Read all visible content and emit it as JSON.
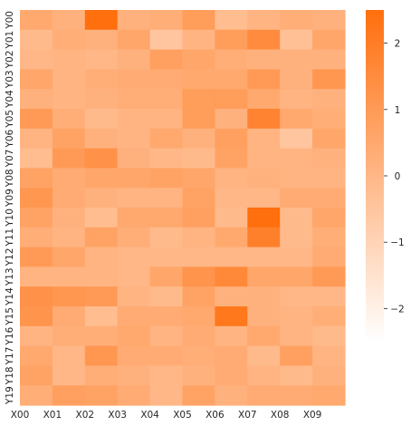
{
  "chart_data": {
    "type": "heatmap",
    "title": "",
    "xlabel": "",
    "ylabel": "",
    "x_labels": [
      "X00",
      "X01",
      "X02",
      "X03",
      "X04",
      "X05",
      "X06",
      "X07",
      "X08",
      "X09"
    ],
    "y_labels": [
      "Y00",
      "Y01",
      "Y02",
      "Y03",
      "Y04",
      "Y05",
      "Y06",
      "Y07",
      "Y08",
      "Y09",
      "Y10",
      "Y11",
      "Y12",
      "Y13",
      "Y14",
      "Y15",
      "Y16",
      "Y17",
      "Y18",
      "Y19"
    ],
    "values": [
      [
        0.5,
        0.2,
        2.5,
        0.2,
        0.3,
        0.9,
        -0.2,
        0.1,
        0.3,
        0.2
      ],
      [
        -0.1,
        0.3,
        0.2,
        0.6,
        -0.5,
        0.1,
        0.9,
        1.5,
        -0.3,
        0.6
      ],
      [
        0.0,
        0.1,
        0.0,
        0.2,
        0.8,
        0.6,
        0.3,
        0.2,
        0.2,
        0.2
      ],
      [
        0.6,
        0.1,
        0.3,
        0.4,
        0.4,
        0.5,
        0.5,
        1.0,
        0.2,
        1.1
      ],
      [
        0.2,
        0.1,
        0.2,
        0.3,
        0.3,
        0.9,
        0.9,
        0.5,
        0.1,
        0.2
      ],
      [
        1.0,
        0.3,
        -0.1,
        0.1,
        0.1,
        0.9,
        0.2,
        1.8,
        0.5,
        0.3
      ],
      [
        0.1,
        0.7,
        0.2,
        0.1,
        0.5,
        0.2,
        0.8,
        0.1,
        -0.5,
        0.6
      ],
      [
        -0.2,
        1.0,
        1.3,
        0.2,
        0.0,
        -0.1,
        0.7,
        0.1,
        0.1,
        0.2
      ],
      [
        0.7,
        0.4,
        0.6,
        0.6,
        0.7,
        0.6,
        0.1,
        0.2,
        0.1,
        0.1
      ],
      [
        1.1,
        0.4,
        0.2,
        0.1,
        0.1,
        0.7,
        0.0,
        0.0,
        0.4,
        0.4
      ],
      [
        0.7,
        0.2,
        -0.2,
        0.5,
        0.5,
        0.8,
        -0.1,
        2.5,
        -0.1,
        0.6
      ],
      [
        0.3,
        0.1,
        0.7,
        0.3,
        -0.1,
        0.1,
        0.5,
        1.9,
        -0.1,
        0.3
      ],
      [
        1.0,
        0.6,
        0.1,
        0.0,
        0.0,
        0.0,
        0.0,
        0.0,
        0.0,
        0.4
      ],
      [
        0.1,
        0.1,
        0.1,
        0.0,
        0.6,
        1.2,
        1.6,
        0.6,
        0.6,
        1.0
      ],
      [
        1.3,
        1.1,
        1.0,
        0.1,
        -0.1,
        0.7,
        0.2,
        0.2,
        0.0,
        0.0
      ],
      [
        1.2,
        0.4,
        -0.2,
        0.4,
        0.4,
        0.5,
        2.2,
        0.2,
        0.1,
        0.3
      ],
      [
        0.1,
        0.3,
        0.3,
        0.5,
        0.1,
        0.4,
        0.1,
        0.5,
        0.1,
        -0.1
      ],
      [
        0.5,
        0.0,
        1.1,
        0.4,
        0.4,
        0.3,
        0.4,
        -0.1,
        0.8,
        0.1
      ],
      [
        0.7,
        0.0,
        0.3,
        0.2,
        0.0,
        0.2,
        0.4,
        0.1,
        -0.1,
        0.2
      ],
      [
        0.3,
        0.8,
        0.7,
        0.4,
        0.0,
        0.7,
        0.2,
        0.4,
        0.4,
        0.5
      ]
    ],
    "color_range": [
      -2.5,
      2.5
    ],
    "colorbar_ticks": [
      2,
      1,
      0,
      -1,
      -2
    ],
    "colors": {
      "high": "#ff6f0e",
      "low": "#ffffff"
    }
  }
}
